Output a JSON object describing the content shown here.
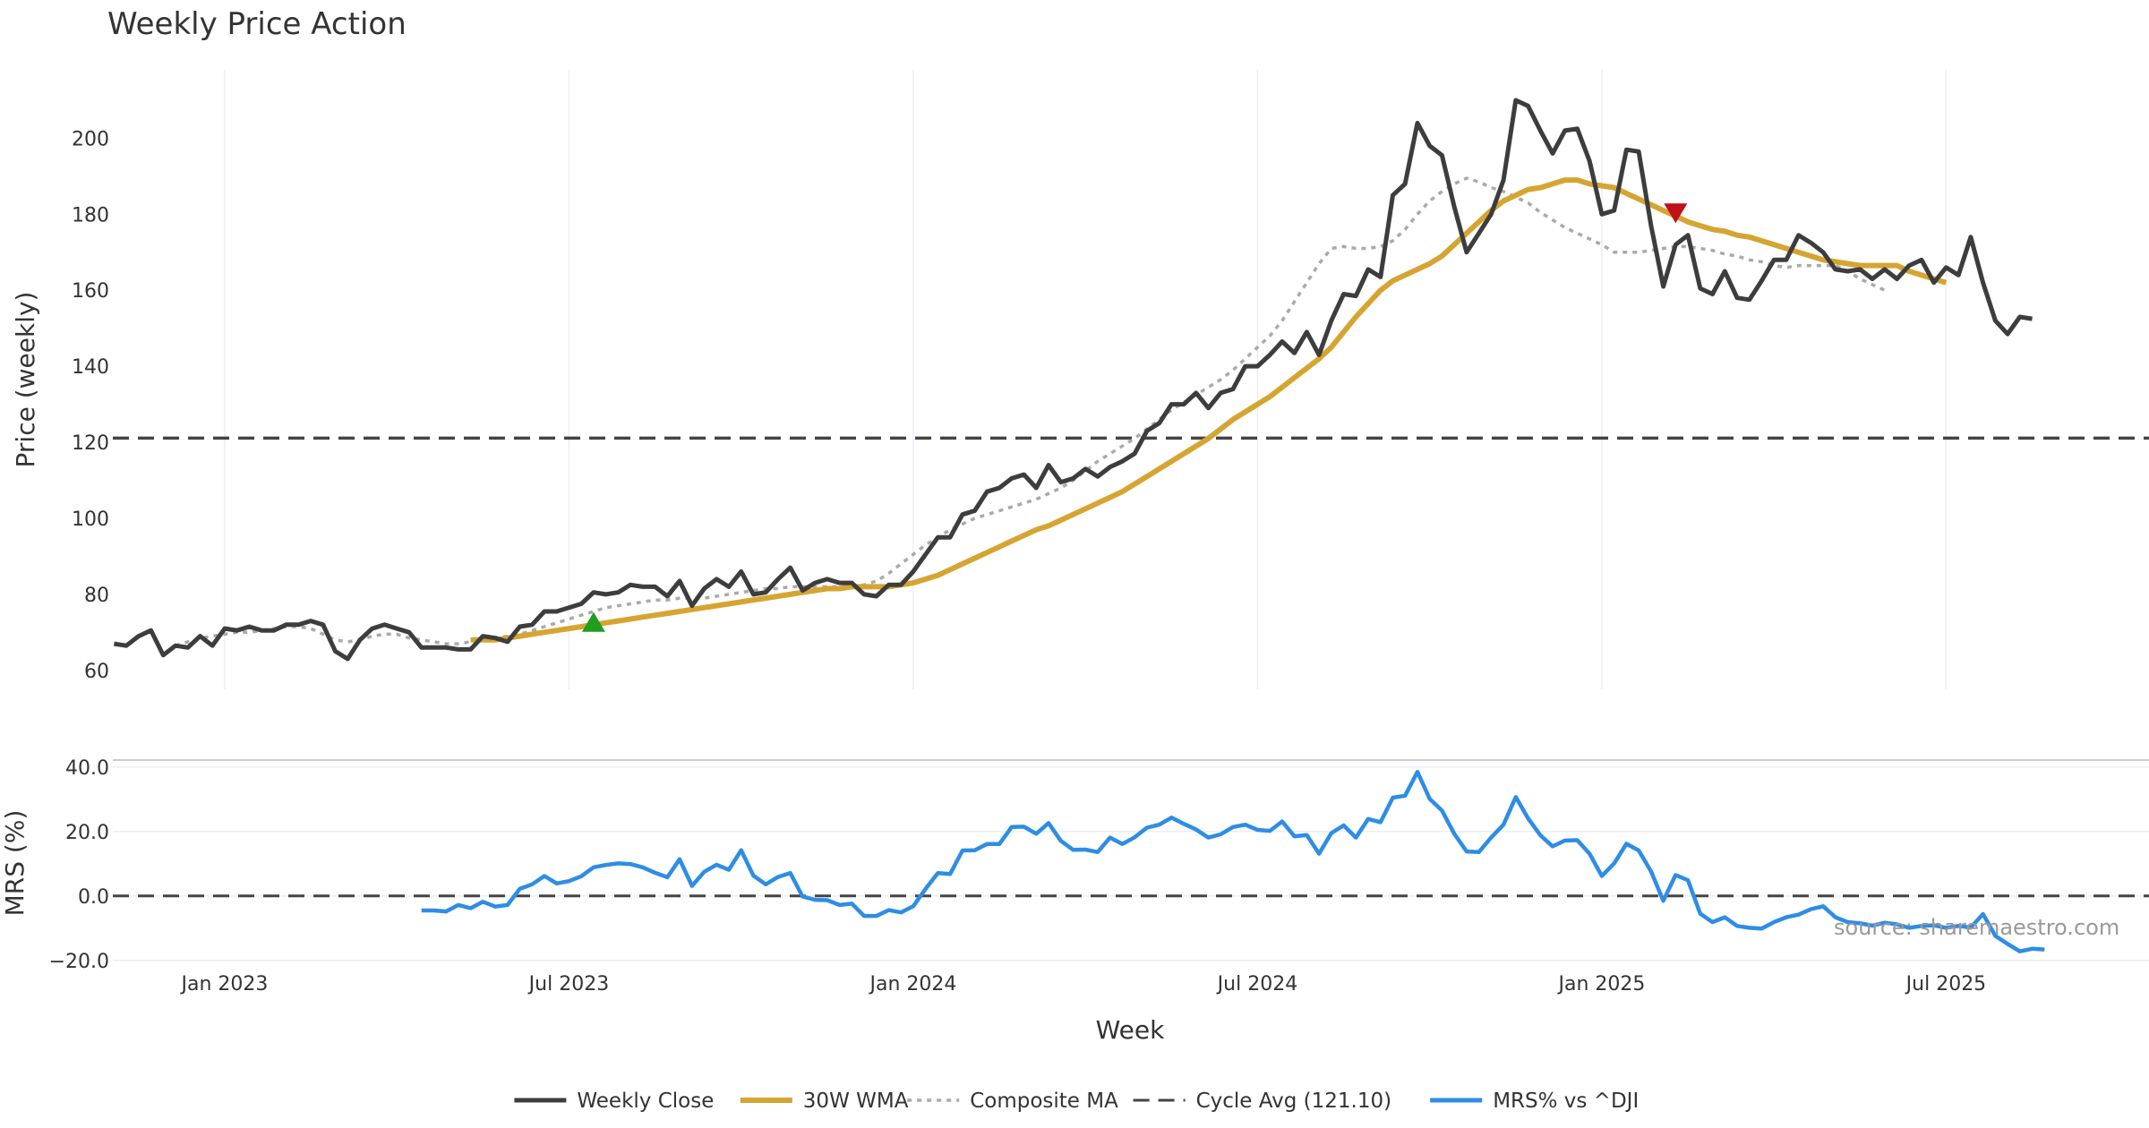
{
  "chart_data": {
    "type": "line",
    "title": "Weekly Price Action",
    "xlabel": "Week",
    "source": "source: sharemaestro.com",
    "colors": {
      "close": "#3d3d3d",
      "wma": "#d6a531",
      "composite": "#aaaaaa",
      "cycle": "#444444",
      "mrs": "#2e8de5",
      "buy": "#1f9e1f",
      "sell": "#c0101a",
      "grid": "#ebeff5"
    },
    "x_ticks": [
      "Jan 2023",
      "Jul 2023",
      "Jan 2024",
      "Jul 2024",
      "Jan 2025",
      "Jul 2025"
    ],
    "x_tick_index": [
      13,
      41,
      69,
      97,
      125,
      153
    ],
    "x_index_range": [
      3.9,
      169.5
    ],
    "price_panel": {
      "ylabel": "Price (weekly)",
      "ylim": [
        55,
        218
      ],
      "yticks": [
        60,
        80,
        100,
        120,
        140,
        160,
        180,
        200
      ],
      "cycle_avg": 121.1
    },
    "mrs_panel": {
      "ylabel": "MRS (%)",
      "ylim": [
        -22,
        43
      ],
      "yticks": [
        -20.0,
        0.0,
        20.0,
        40.0
      ],
      "ytick_labels": [
        "−20.0",
        "0.0",
        "20.0",
        "40.0"
      ],
      "zero": 0.0
    },
    "legend": [
      "Weekly Close",
      "30W WMA",
      "Composite MA",
      "Cycle Avg (121.10)",
      "MRS% vs ^DJI"
    ],
    "series": [
      {
        "name": "Weekly Close",
        "start_index": 4,
        "values": [
          67,
          66.5,
          69,
          70.5,
          64,
          66.5,
          66,
          69,
          66.5,
          71,
          70.5,
          71.5,
          70.5,
          70.5,
          72,
          72,
          73,
          72,
          65,
          63,
          68,
          71,
          72,
          71,
          70,
          66,
          66,
          66,
          65.5,
          65.5,
          69,
          68.5,
          67.5,
          71.5,
          72,
          75.5,
          75.5,
          76.5,
          77.5,
          80.5,
          80,
          80.5,
          82.5,
          82,
          82,
          79.5,
          83.5,
          77,
          81.5,
          84,
          82,
          86,
          80,
          80.5,
          84,
          87,
          81,
          83,
          84,
          83,
          83,
          80,
          79.5,
          82.5,
          82.5,
          86,
          90.5,
          95,
          95,
          101,
          102,
          107,
          108,
          110.5,
          111.5,
          108,
          114,
          109.5,
          110.5,
          113,
          111,
          113.5,
          115,
          117,
          123,
          125,
          130,
          130,
          133,
          129,
          133,
          134,
          140,
          140,
          143,
          146.5,
          143.5,
          149,
          143,
          152,
          159,
          158.5,
          165.5,
          163.5,
          185,
          188,
          204,
          198,
          195.5,
          182,
          170,
          175,
          180,
          189,
          210,
          208.5,
          202,
          196,
          202,
          202.5,
          194,
          180,
          181,
          197,
          196.5,
          177,
          161,
          172,
          174.5,
          160.5,
          159,
          165,
          158,
          157.5,
          162.5,
          168,
          168,
          174.5,
          172.5,
          170,
          165.5,
          165,
          165.5,
          163,
          165.5,
          163,
          166.5,
          168,
          162,
          166,
          164,
          174,
          162,
          152,
          148.5,
          153,
          152.5
        ]
      },
      {
        "name": "30W WMA",
        "start_index": 33,
        "values": [
          68,
          68,
          68,
          68.5,
          69,
          69.5,
          70,
          70.5,
          71,
          71.5,
          72,
          72.5,
          73,
          73.5,
          74,
          74.5,
          75,
          75.5,
          76,
          76.5,
          77,
          77.5,
          78,
          78.5,
          79,
          79.5,
          80,
          80.5,
          81,
          81.5,
          81.5,
          82,
          82,
          82,
          82,
          82.5,
          83,
          84,
          85,
          86.5,
          88,
          89.5,
          91,
          92.5,
          94,
          95.5,
          97,
          98,
          99.5,
          101,
          102.5,
          104,
          105.5,
          107,
          109,
          111,
          113,
          115,
          117,
          119,
          121,
          123.5,
          126,
          128,
          130,
          132,
          134.5,
          137,
          139.5,
          142,
          145,
          149,
          153,
          156.5,
          160,
          162.5,
          164,
          165.5,
          167,
          169,
          172,
          175,
          178,
          181,
          183.5,
          185,
          186.5,
          187,
          188,
          189,
          189,
          188,
          187.5,
          187,
          185.5,
          184,
          182.5,
          181,
          179.5,
          178,
          177,
          176,
          175.5,
          174.5,
          174,
          173,
          172,
          171,
          170,
          169,
          168,
          167.5,
          167,
          166.5,
          166.5,
          166.5,
          166.5,
          165,
          164,
          163,
          162
        ]
      },
      {
        "name": "Composite MA",
        "start_index": 9,
        "values": [
          66.5,
          67.5,
          68.5,
          69,
          69.5,
          70,
          70,
          70.5,
          71,
          71.5,
          71.5,
          71,
          69.5,
          68,
          67.5,
          68,
          69,
          69.5,
          69.5,
          68.5,
          68,
          67.5,
          67,
          67,
          67.5,
          68,
          68.5,
          69,
          69.5,
          70.5,
          71.5,
          72.5,
          73.5,
          74.5,
          75.5,
          76.5,
          77,
          77.5,
          78,
          78.5,
          78.5,
          79,
          79,
          79,
          79.5,
          80,
          80.5,
          81,
          81.5,
          81.5,
          82,
          82,
          82,
          82,
          82,
          82,
          82.5,
          83.5,
          85.5,
          88,
          90.5,
          93,
          95,
          97,
          98.5,
          100,
          101,
          102,
          103,
          104,
          105,
          106.5,
          108,
          110,
          112.5,
          115,
          117,
          119,
          121,
          123.5,
          126,
          128.5,
          130.5,
          132.5,
          134.5,
          136.5,
          139,
          142,
          145,
          148,
          152,
          157,
          162,
          167,
          171,
          171.5,
          171,
          171,
          171.5,
          173,
          176,
          180,
          183.5,
          186,
          188,
          189.5,
          188.5,
          187,
          186,
          184.5,
          183,
          180.5,
          178.5,
          176.5,
          175,
          173.5,
          172,
          170,
          170,
          170,
          170.5,
          171,
          171.5,
          171.5,
          171,
          170.5,
          169.5,
          169,
          168,
          167.5,
          166.5,
          166,
          166.5,
          166.5,
          166.5,
          166.5,
          165,
          163,
          161.5,
          160
        ]
      },
      {
        "name": "MRS% vs ^DJI",
        "start_index": 29,
        "values": [
          -4.5,
          -4.5,
          -4.8,
          -2.8,
          -3.8,
          -1.8,
          -3.3,
          -2.8,
          2.2,
          3.6,
          6.2,
          3.9,
          4.6,
          6.1,
          8.9,
          9.6,
          10.1,
          9.9,
          8.9,
          7.2,
          5.8,
          11.4,
          3.1,
          7.5,
          9.7,
          8.1,
          14.2,
          6.3,
          3.6,
          5.9,
          7.1,
          -0.2,
          -1.2,
          -1.3,
          -2.8,
          -2.4,
          -6.2,
          -6.2,
          -4.4,
          -5.1,
          -3.2,
          2.2,
          7.1,
          6.8,
          14.1,
          14.2,
          16.1,
          16.1,
          21.4,
          21.5,
          19.3,
          22.6,
          17.1,
          14.3,
          14.4,
          13.6,
          18.1,
          16.1,
          18.2,
          21.2,
          22.1,
          24.3,
          22.4,
          20.6,
          18.1,
          19.1,
          21.4,
          22.1,
          20.5,
          20.2,
          23.1,
          18.5,
          18.9,
          13.1,
          19.5,
          21.9,
          18.1,
          23.9,
          22.9,
          30.5,
          31.1,
          38.5,
          30.1,
          26.5,
          19.3,
          13.8,
          13.6,
          18.1,
          22.1,
          30.7,
          24.1,
          18.8,
          15.4,
          17.2,
          17.3,
          13.1,
          6.2,
          10.1,
          16.2,
          14.1,
          7.6,
          -1.5,
          6.5,
          4.9,
          -5.5,
          -8.1,
          -6.6,
          -9.3,
          -9.9,
          -10.1,
          -8.1,
          -6.6,
          -5.8,
          -4.1,
          -3.2,
          -6.6,
          -8.1,
          -8.5,
          -9.2,
          -8.3,
          -8.8,
          -9.9,
          -9.3,
          -9.1,
          -9.9,
          -9.3,
          -9.8,
          -5.6,
          -12.4,
          -14.9,
          -17.2,
          -16.4,
          -16.6
        ]
      }
    ],
    "signals": [
      {
        "type": "buy",
        "index": 43,
        "value": 72.5
      },
      {
        "type": "sell",
        "index": 131,
        "value": 180.5
      }
    ]
  }
}
